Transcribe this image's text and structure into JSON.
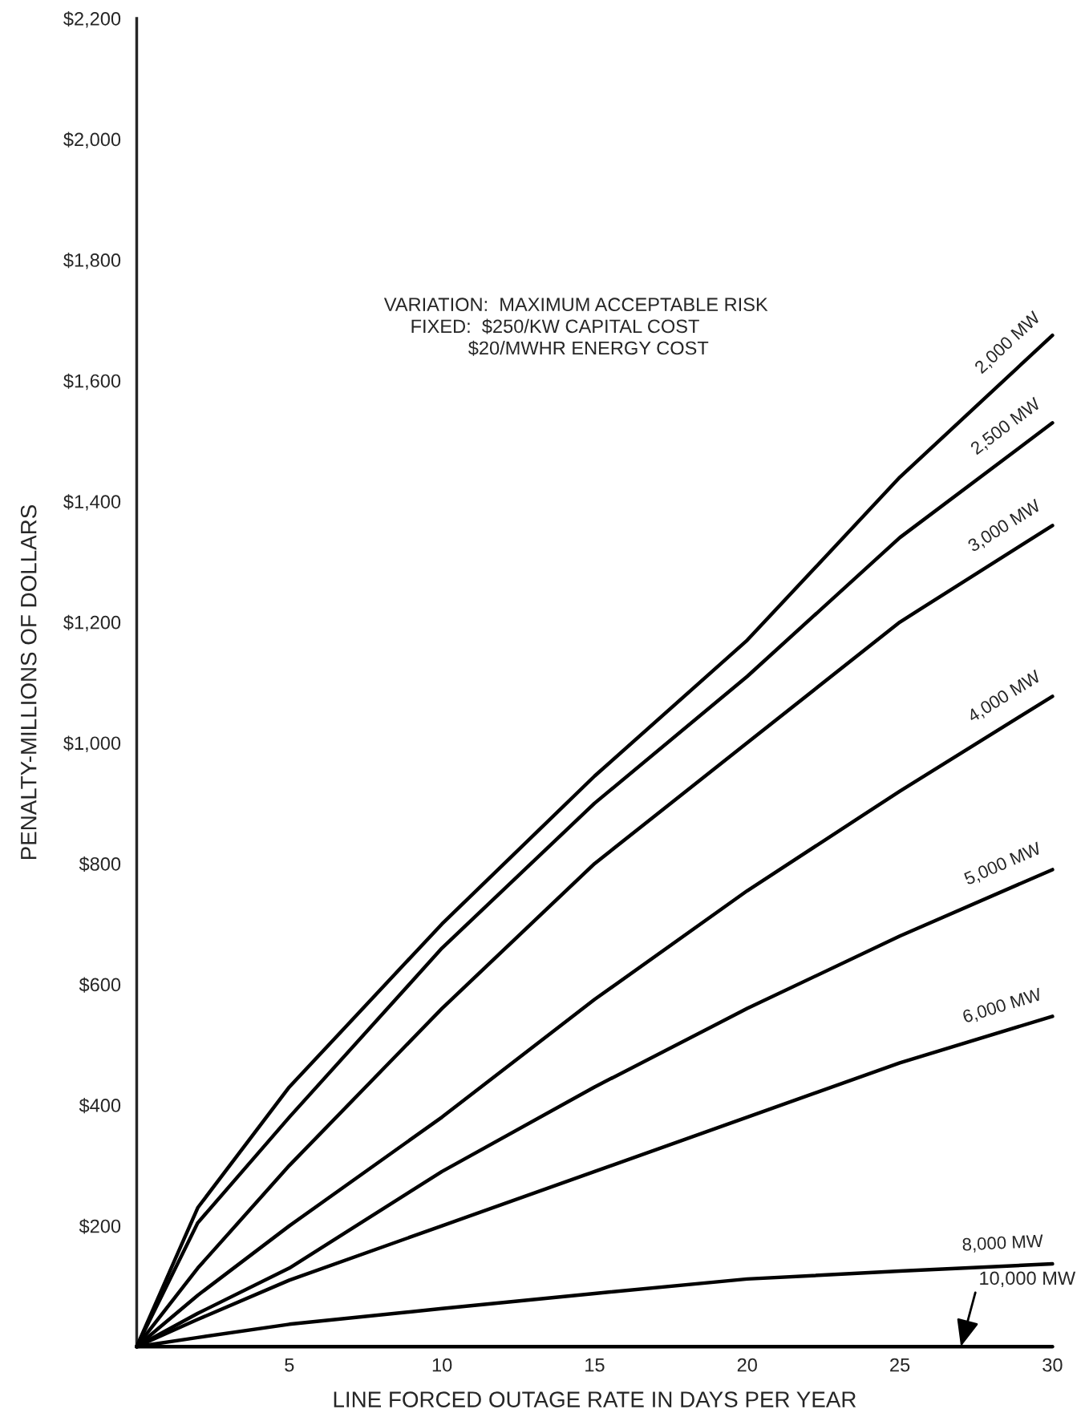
{
  "chart_data": {
    "type": "line",
    "xlabel": "LINE FORCED OUTAGE RATE IN DAYS PER YEAR",
    "ylabel": "PENALTY-MILLIONS OF DOLLARS",
    "x": [
      0,
      2,
      5,
      10,
      15,
      20,
      25,
      30
    ],
    "series": [
      {
        "name": "2,000 MW",
        "color": "#000000",
        "values": [
          0,
          230,
          430,
          700,
          945,
          1170,
          1440,
          1675
        ]
      },
      {
        "name": "2,500 MW",
        "color": "#000000",
        "values": [
          0,
          205,
          380,
          660,
          900,
          1110,
          1340,
          1530
        ]
      },
      {
        "name": "3,000 MW",
        "color": "#000000",
        "values": [
          0,
          130,
          300,
          560,
          800,
          1000,
          1200,
          1360
        ]
      },
      {
        "name": "4,000 MW",
        "color": "#000000",
        "values": [
          0,
          85,
          200,
          380,
          575,
          755,
          920,
          1077
        ]
      },
      {
        "name": "5,000 MW",
        "color": "#000000",
        "values": [
          0,
          55,
          130,
          290,
          430,
          560,
          680,
          790
        ]
      },
      {
        "name": "6,000 MW",
        "color": "#000000",
        "values": [
          0,
          45,
          110,
          200,
          290,
          380,
          470,
          547
        ]
      },
      {
        "name": "8,000 MW",
        "color": "#000000",
        "values": [
          0,
          15,
          37,
          63,
          88,
          112,
          125,
          137
        ]
      },
      {
        "color": "#000000",
        "values": [
          0,
          0,
          0,
          0,
          0,
          0,
          0,
          0
        ]
      }
    ],
    "xlim": [
      0,
      30
    ],
    "ylim": [
      0,
      2200
    ],
    "xticks": [
      5,
      10,
      15,
      20,
      25,
      30
    ],
    "yticks": [
      {
        "value": 200,
        "label": "$200"
      },
      {
        "value": 400,
        "label": "$400"
      },
      {
        "value": 600,
        "label": "$600"
      },
      {
        "value": 800,
        "label": "$800"
      },
      {
        "value": 1000,
        "label": "$1,000"
      },
      {
        "value": 1200,
        "label": "$1,200"
      },
      {
        "value": 1400,
        "label": "$1,400"
      },
      {
        "value": 1600,
        "label": "$1,600"
      },
      {
        "value": 1800,
        "label": "$1,800"
      },
      {
        "value": 2000,
        "label": "$2,000"
      },
      {
        "value": 2200,
        "label": "$2,200"
      }
    ],
    "annotations": [
      "VARIATION:  MAXIMUM ACCEPTABLE RISK\n     FIXED:  $250/KW CAPITAL COST\n                $20/MWHR ENERGY COST",
      {
        "text": "10,000 MW",
        "x": 27,
        "y": 0
      }
    ],
    "grid": false,
    "legend": false,
    "marker": "none",
    "line_style": "solid"
  }
}
